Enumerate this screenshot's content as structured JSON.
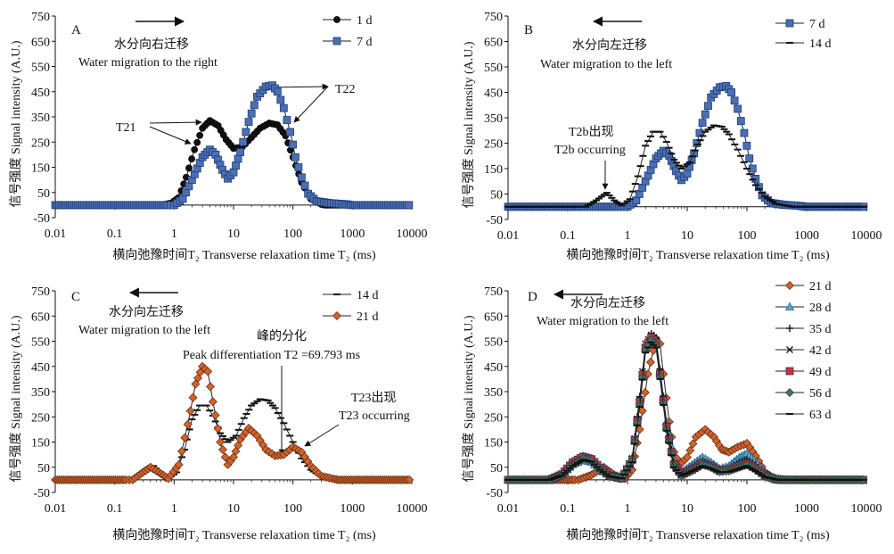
{
  "chart_data": [
    {
      "panel": "A",
      "type": "line",
      "xscale": "log",
      "xlim": [
        0.01,
        10000
      ],
      "ylim": [
        -50,
        750
      ],
      "xticks": [
        "0.01",
        "0.1",
        "1",
        "10",
        "100",
        "1000",
        "10000"
      ],
      "yticks": [
        "-50",
        "50",
        "150",
        "250",
        "350",
        "450",
        "550",
        "650",
        "750"
      ],
      "ylabel": "信号强度 Signal intensity (A.U.)",
      "xlabel": "横向弛豫时间T₂ Transverse relaxation time T₂ (ms)",
      "legend_position": "top-right",
      "series": [
        {
          "name": "1 d",
          "color": "#111111",
          "marker": "circle",
          "x": [
            0.6,
            0.9,
            1.2,
            1.6,
            2.2,
            3,
            4,
            5.5,
            7.5,
            10,
            14,
            20,
            28,
            40,
            55,
            75,
            100,
            140,
            200,
            300
          ],
          "y": [
            0,
            8,
            30,
            110,
            220,
            305,
            335,
            315,
            260,
            225,
            230,
            268,
            305,
            325,
            318,
            275,
            190,
            90,
            25,
            3
          ]
        },
        {
          "name": "7 d",
          "color": "#4a6fb5",
          "marker": "square",
          "x": [
            1,
            1.4,
            2,
            3,
            4,
            5,
            6.5,
            8,
            10,
            13,
            18,
            25,
            35,
            45,
            55,
            70,
            90,
            110,
            140,
            180,
            250,
            400,
            800
          ],
          "y": [
            0,
            25,
            100,
            190,
            220,
            200,
            140,
            105,
            130,
            210,
            330,
            430,
            470,
            475,
            450,
            385,
            290,
            190,
            110,
            45,
            15,
            8,
            3
          ]
        }
      ],
      "annotations": [
        "A",
        "水分向右迁移",
        "Water migration to the right",
        "T21",
        "T22"
      ]
    },
    {
      "panel": "B",
      "type": "line",
      "xscale": "log",
      "xlim": [
        0.01,
        10000
      ],
      "ylim": [
        -50,
        750
      ],
      "xticks": [
        "0.01",
        "0.1",
        "1",
        "10",
        "100",
        "1000",
        "10000"
      ],
      "yticks": [
        "-50",
        "50",
        "150",
        "250",
        "350",
        "450",
        "550",
        "650",
        "750"
      ],
      "ylabel": "信号强度 Signal intensity (A.U.)",
      "xlabel": "横向弛豫时间T₂ Transverse relaxation time T₂ (ms)",
      "legend_position": "top-right",
      "series": [
        {
          "name": "7 d",
          "color": "#4a6fb5",
          "marker": "square",
          "x": [
            1,
            1.4,
            2,
            3,
            4,
            5,
            6.5,
            8,
            10,
            13,
            18,
            25,
            35,
            45,
            55,
            70,
            90,
            110,
            140,
            180,
            250,
            400,
            800
          ],
          "y": [
            0,
            25,
            100,
            190,
            220,
            200,
            140,
            105,
            130,
            210,
            330,
            430,
            470,
            475,
            450,
            385,
            290,
            190,
            110,
            45,
            15,
            8,
            3
          ]
        },
        {
          "name": "14 d",
          "color": "#111111",
          "marker": "dash",
          "x": [
            0.2,
            0.3,
            0.45,
            0.6,
            0.8,
            1.1,
            1.5,
            2,
            2.7,
            3.5,
            4.5,
            6,
            8,
            11,
            15,
            20,
            28,
            38,
            50,
            70,
            100,
            140,
            200,
            300,
            500
          ],
          "y": [
            0,
            25,
            55,
            25,
            5,
            30,
            120,
            240,
            295,
            295,
            255,
            185,
            150,
            175,
            245,
            295,
            320,
            315,
            285,
            225,
            150,
            85,
            40,
            12,
            3
          ]
        }
      ],
      "annotations": [
        "B",
        "水分向左迁移",
        "Water migration to the left",
        "T2b出现",
        "T2b occurring"
      ]
    },
    {
      "panel": "C",
      "type": "line",
      "xscale": "log",
      "xlim": [
        0.01,
        10000
      ],
      "ylim": [
        -50,
        750
      ],
      "xticks": [
        "0.01",
        "0.1",
        "1",
        "10",
        "100",
        "1000",
        "10000"
      ],
      "yticks": [
        "-50",
        "50",
        "150",
        "250",
        "350",
        "450",
        "550",
        "650",
        "750"
      ],
      "ylabel": "信号强度 Signal intensity (A.U.)",
      "xlabel": "横向弛豫时间T₂ Transverse relaxation time T₂ (ms)",
      "legend_position": "top-right",
      "series": [
        {
          "name": "14 d",
          "color": "#111111",
          "marker": "dash",
          "x": [
            0.2,
            0.3,
            0.45,
            0.6,
            0.8,
            1.1,
            1.5,
            2,
            2.7,
            3.5,
            4.5,
            6,
            8,
            11,
            15,
            20,
            28,
            38,
            50,
            70,
            100,
            140,
            200,
            300,
            500
          ],
          "y": [
            0,
            25,
            55,
            25,
            5,
            30,
            120,
            240,
            295,
            295,
            255,
            185,
            150,
            175,
            245,
            295,
            320,
            315,
            285,
            225,
            150,
            85,
            40,
            12,
            3
          ]
        },
        {
          "name": "21 d",
          "color": "#d1622b",
          "marker": "diamond",
          "x": [
            0.2,
            0.3,
            0.4,
            0.55,
            0.8,
            1.2,
            1.7,
            2.3,
            3,
            3.7,
            4.5,
            6,
            8,
            10,
            13,
            18,
            25,
            35,
            50,
            70,
            100,
            140,
            200,
            300,
            500
          ],
          "y": [
            0,
            30,
            50,
            30,
            5,
            60,
            220,
            380,
            450,
            430,
            310,
            150,
            60,
            90,
            160,
            205,
            175,
            120,
            95,
            100,
            130,
            110,
            55,
            15,
            3
          ]
        }
      ],
      "annotations": [
        "C",
        "水分向左迁移",
        "Water migration to the left",
        "峰的分化",
        "Peak differentiation T2 =69.793 ms",
        "T23出现",
        "T23 occurring"
      ]
    },
    {
      "panel": "D",
      "type": "line",
      "xscale": "log",
      "xlim": [
        0.01,
        10000
      ],
      "ylim": [
        -50,
        750
      ],
      "xticks": [
        "0.01",
        "0.1",
        "1",
        "10",
        "100",
        "1000",
        "10000"
      ],
      "yticks": [
        "-50",
        "50",
        "150",
        "250",
        "350",
        "450",
        "550",
        "650",
        "750"
      ],
      "ylabel": "信号强度 Signal intensity (A.U.)",
      "xlabel": "横向弛豫时间T₂ Transverse relaxation time T₂ (ms)",
      "legend_position": "top-right",
      "series": [
        {
          "name": "21 d",
          "color": "#d1622b",
          "marker": "diamond",
          "x": [
            0.15,
            0.25,
            0.4,
            0.6,
            0.9,
            1.2,
            1.6,
            2.2,
            3,
            3.5,
            4,
            5,
            6,
            7.5,
            10,
            14,
            20,
            28,
            38,
            50,
            70,
            100,
            140,
            200,
            300
          ],
          "y": [
            0,
            20,
            50,
            20,
            5,
            40,
            200,
            420,
            560,
            540,
            420,
            230,
            110,
            60,
            90,
            170,
            200,
            170,
            120,
            110,
            130,
            145,
            95,
            30,
            3
          ]
        },
        {
          "name": "28 d",
          "color": "#5aa6c9",
          "marker": "triangle",
          "x": [
            0.05,
            0.08,
            0.12,
            0.18,
            0.25,
            0.35,
            0.5,
            0.8,
            1.2,
            1.6,
            2,
            2.5,
            3,
            3.5,
            4.5,
            6,
            8,
            12,
            18,
            25,
            35,
            50,
            75,
            100,
            130,
            180,
            250,
            400
          ],
          "y": [
            0,
            20,
            60,
            80,
            70,
            40,
            15,
            5,
            80,
            300,
            520,
            570,
            550,
            430,
            230,
            80,
            30,
            60,
            90,
            70,
            45,
            55,
            90,
            105,
            80,
            40,
            10,
            2
          ]
        },
        {
          "name": "35 d",
          "color": "#111111",
          "marker": "plus",
          "x": [
            0.05,
            0.08,
            0.12,
            0.18,
            0.25,
            0.35,
            0.5,
            0.8,
            1.2,
            1.6,
            2,
            2.5,
            3,
            3.5,
            4.5,
            6,
            8,
            12,
            18,
            25,
            35,
            50,
            75,
            100,
            140,
            200,
            300
          ],
          "y": [
            0,
            25,
            70,
            95,
            85,
            50,
            20,
            5,
            90,
            330,
            530,
            580,
            560,
            440,
            220,
            70,
            25,
            50,
            75,
            60,
            40,
            45,
            70,
            80,
            60,
            25,
            3
          ]
        },
        {
          "name": "42 d",
          "color": "#111111",
          "marker": "cross",
          "x": [
            0.05,
            0.08,
            0.12,
            0.18,
            0.25,
            0.35,
            0.5,
            0.8,
            1.2,
            1.6,
            2,
            2.5,
            3,
            3.5,
            4.5,
            6,
            8,
            12,
            18,
            25,
            35,
            50,
            75,
            100,
            140,
            200,
            300
          ],
          "y": [
            0,
            20,
            65,
            90,
            80,
            45,
            15,
            5,
            85,
            320,
            540,
            575,
            555,
            430,
            215,
            65,
            20,
            45,
            70,
            55,
            35,
            40,
            60,
            70,
            50,
            20,
            2
          ]
        },
        {
          "name": "49 d",
          "color": "#d23030",
          "marker": "square",
          "x": [
            0.05,
            0.08,
            0.12,
            0.18,
            0.25,
            0.35,
            0.5,
            0.8,
            1.2,
            1.6,
            2,
            2.5,
            3,
            3.5,
            4.5,
            6,
            8,
            12,
            18,
            25,
            35,
            50,
            75,
            100,
            140,
            200,
            300
          ],
          "y": [
            0,
            22,
            68,
            92,
            82,
            48,
            18,
            5,
            80,
            310,
            525,
            565,
            545,
            420,
            210,
            60,
            20,
            40,
            65,
            55,
            35,
            40,
            55,
            65,
            45,
            18,
            2
          ]
        },
        {
          "name": "56 d",
          "color": "#2e7d7a",
          "marker": "diamond",
          "x": [
            0.05,
            0.08,
            0.12,
            0.18,
            0.25,
            0.35,
            0.5,
            0.8,
            1.2,
            1.6,
            2,
            2.5,
            3,
            3.5,
            4.5,
            6,
            8,
            12,
            18,
            25,
            35,
            50,
            75,
            100,
            140,
            200,
            300
          ],
          "y": [
            0,
            20,
            60,
            85,
            75,
            42,
            15,
            5,
            75,
            300,
            515,
            555,
            535,
            410,
            200,
            55,
            18,
            38,
            60,
            50,
            32,
            35,
            50,
            60,
            40,
            15,
            2
          ]
        },
        {
          "name": "63 d",
          "color": "#111111",
          "marker": "dash",
          "x": [
            0.05,
            0.08,
            0.12,
            0.18,
            0.25,
            0.35,
            0.5,
            0.8,
            1.2,
            1.6,
            2,
            2.5,
            3,
            3.5,
            4.5,
            6,
            8,
            12,
            18,
            25,
            35,
            50,
            75,
            100,
            140,
            200,
            300
          ],
          "y": [
            0,
            18,
            55,
            80,
            72,
            40,
            14,
            5,
            70,
            290,
            505,
            545,
            525,
            400,
            195,
            50,
            16,
            35,
            55,
            45,
            30,
            32,
            45,
            55,
            35,
            12,
            2
          ]
        }
      ],
      "annotations": [
        "D",
        "水分向左迁移",
        "Water migration to the left"
      ]
    }
  ]
}
